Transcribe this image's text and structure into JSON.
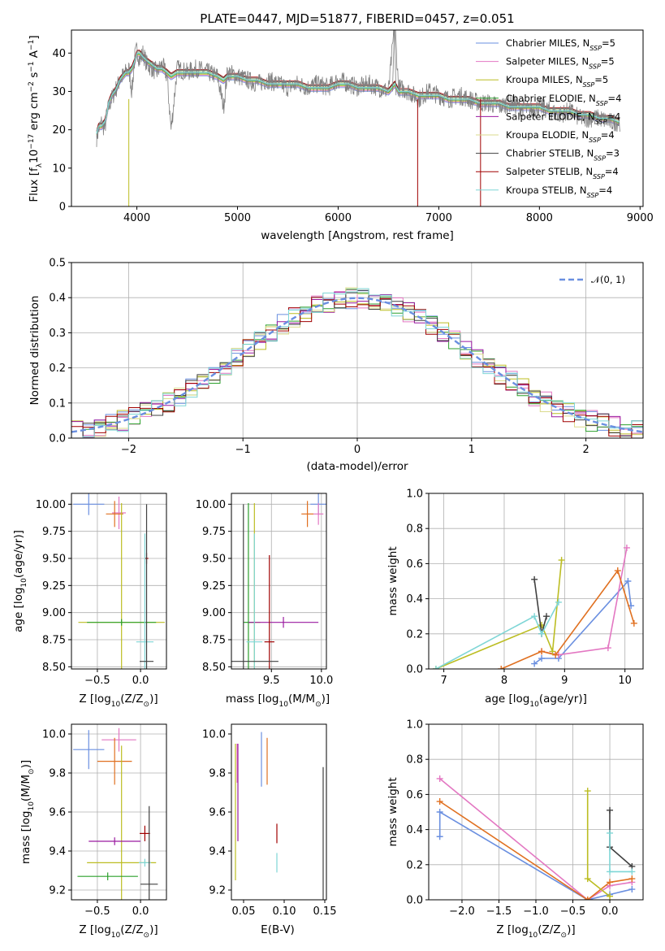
{
  "colors": {
    "chabrier_miles": "#6a8fe0",
    "salpeter_miles": "#e377c2",
    "kroupa_miles": "#bcbd22",
    "chabrier_elodie": "#2ca02c",
    "salpeter_elodie": "#9a1aa0",
    "kroupa_elodie": "#dbdb8d",
    "chabrier_stelib": "#404040",
    "salpeter_stelib": "#a00000",
    "kroupa_stelib": "#7fd6d6",
    "data_grey": "#808080",
    "fit_cyan": "#7fd6d6",
    "gauss": "#6a8fe0"
  },
  "chart_data": [
    {
      "id": "spectrum",
      "type": "line",
      "title": "PLATE=0447, MJD=51877, FIBERID=0457, z=0.051",
      "xlabel": "wavelength [Angstrom, rest frame]",
      "ylabel": "Flux [f$_\\lambda$10$^{-17}$ erg cm$^{-2}$ s$^{-1}$ A$^{-1}$]",
      "ylabel_parts": [
        "Flux [f",
        "λ",
        "10",
        "−17",
        " erg cm",
        "−2",
        " s",
        "−1",
        " A",
        "−1",
        "]"
      ],
      "xlim": [
        3350,
        9030
      ],
      "ylim": [
        0,
        46
      ],
      "xticks": [
        "4000",
        "5000",
        "6000",
        "7000",
        "8000",
        "9000"
      ],
      "yticks": [
        "0",
        "10",
        "20",
        "30",
        "40"
      ],
      "x": [
        3600,
        3620,
        3650,
        3680,
        3700,
        3720,
        3750,
        3780,
        3800,
        3830,
        3860,
        3890,
        3920,
        3950,
        3980,
        4000,
        4030,
        4060,
        4100,
        4150,
        4200,
        4250,
        4300,
        4340,
        4400,
        4500,
        4600,
        4700,
        4800,
        4861,
        4900,
        5000,
        5100,
        5200,
        5300,
        5400,
        5500,
        5600,
        5700,
        5800,
        5900,
        6000,
        6100,
        6200,
        6300,
        6400,
        6500,
        6563,
        6600,
        6700,
        6800,
        6900,
        7000,
        7100,
        7200,
        7300,
        7400,
        7500,
        7600,
        7700,
        7800,
        7900,
        8000,
        8100,
        8200,
        8300,
        8400,
        8500,
        8600,
        8700,
        8800
      ],
      "series": [
        {
          "name": "data",
          "values": [
            18,
            20,
            22,
            20,
            24,
            26,
            28,
            30,
            31,
            33,
            34,
            35,
            36,
            30,
            39,
            41,
            38,
            40,
            37,
            36,
            35,
            37,
            34,
            20,
            36,
            35,
            36,
            35,
            34,
            26,
            35,
            34,
            33,
            32,
            33,
            32,
            31,
            32,
            31,
            32,
            31,
            33,
            32,
            31,
            32,
            31,
            30,
            48,
            31,
            30,
            28,
            30,
            29,
            28,
            29,
            28,
            27,
            27,
            26,
            27,
            26,
            25,
            26,
            25,
            24,
            25,
            23,
            23,
            23,
            22,
            22
          ]
        },
        {
          "name": "model",
          "values": [
            19,
            21,
            21,
            22,
            24,
            27,
            29,
            30,
            31,
            33,
            34,
            35,
            35,
            36,
            38,
            40,
            40,
            39,
            38,
            37,
            36,
            36,
            35,
            34,
            35,
            35,
            35,
            35,
            34,
            33,
            34,
            34,
            33,
            33,
            32,
            32,
            32,
            32,
            31,
            31,
            31,
            32,
            32,
            31,
            31,
            31,
            30,
            32,
            30,
            30,
            29,
            29,
            29,
            28,
            28,
            28,
            27,
            27,
            27,
            26,
            26,
            26,
            26,
            25,
            25,
            25,
            24,
            24,
            23,
            23,
            22
          ]
        }
      ],
      "legend": [
        {
          "label": "Chabrier MILES, N",
          "sub": "SSP",
          "value": "=5",
          "color": "#6a8fe0"
        },
        {
          "label": "Salpeter MILES, N",
          "sub": "SSP",
          "value": "=5",
          "color": "#e377c2"
        },
        {
          "label": "Kroupa MILES, N",
          "sub": "SSP",
          "value": "=5",
          "color": "#bcbd22"
        },
        {
          "label": "Chabrier ELODIE, N",
          "sub": "SSP",
          "value": "=4",
          "color": "#2ca02c"
        },
        {
          "label": "Salpeter ELODIE, N",
          "sub": "SSP",
          "value": "=4",
          "color": "#9a1aa0"
        },
        {
          "label": "Kroupa ELODIE, N",
          "sub": "SSP",
          "value": "=4",
          "color": "#dbdb8d"
        },
        {
          "label": "Chabrier STELIB, N",
          "sub": "SSP",
          "value": "=3",
          "color": "#404040"
        },
        {
          "label": "Salpeter STELIB, N",
          "sub": "SSP",
          "value": "=4",
          "color": "#a00000"
        },
        {
          "label": "Kroupa STELIB, N",
          "sub": "SSP",
          "value": "=4",
          "color": "#7fd6d6"
        }
      ],
      "legend_placement": "upper right"
    },
    {
      "id": "residuals",
      "type": "line",
      "xlabel": "(data-model)/error",
      "ylabel": "Normed distribution",
      "xlim": [
        -2.5,
        2.5
      ],
      "ylim": [
        0,
        0.5
      ],
      "xticks": [
        "−2",
        "−1",
        "0",
        "1",
        "2"
      ],
      "yticks": [
        "0.0",
        "0.1",
        "0.2",
        "0.3",
        "0.4",
        "0.5"
      ],
      "grid": true,
      "bin_width": 0.1,
      "legend": [
        {
          "label": "𝒩(0, 1)",
          "color": "#6a8fe0",
          "style": "dashed"
        }
      ],
      "legend_placement": "upper right"
    },
    {
      "id": "age_vs_Z",
      "type": "scatter",
      "xlabel": "Z [log",
      "xlabel_parts": [
        "Z [log",
        "10",
        "(Z/Z",
        "⊙",
        ")]"
      ],
      "ylabel_parts": [
        "age  [log",
        "10",
        "(age/yr)]"
      ],
      "xlim": [
        -0.8,
        0.3
      ],
      "ylim": [
        8.48,
        10.1
      ],
      "xticks": [
        "−0.5",
        "0.0"
      ],
      "yticks": [
        "8.50",
        "8.75",
        "9.00",
        "9.25",
        "9.50",
        "9.75",
        "10.00"
      ],
      "grid": true,
      "points": [
        {
          "x": -0.6,
          "y": 10.0,
          "xerr": 0.18,
          "yerr": 0.1,
          "color": "#6a8fe0"
        },
        {
          "x": -0.25,
          "y": 9.92,
          "xerr": 0.08,
          "yerr": 0.15,
          "color": "#e377c2"
        },
        {
          "x": -0.3,
          "y": 9.91,
          "xerr": 0.1,
          "yerr": 0.12,
          "color": "#e07020"
        },
        {
          "x": -0.22,
          "y": 8.91,
          "xerr": 0.5,
          "yerr": 1.1,
          "color": "#bcbd22"
        },
        {
          "x": -0.22,
          "y": 8.91,
          "xerr": 0.4,
          "yerr": 0.03,
          "color": "#2ca02c"
        },
        {
          "x": 0.07,
          "y": 9.5,
          "xerr": 0.02,
          "yerr": 0.05,
          "color": "#a00000"
        },
        {
          "x": 0.05,
          "y": 8.73,
          "xerr": 0.1,
          "yerr": 1.0,
          "color": "#7fd6d6"
        },
        {
          "x": 0.07,
          "y": 8.55,
          "xerr": 0.08,
          "yerr": 1.45,
          "color": "#404040"
        }
      ]
    },
    {
      "id": "age_vs_mass",
      "type": "scatter",
      "xlabel_parts": [
        "mass [log",
        "10",
        "(M/M",
        "⊙",
        ")]"
      ],
      "xlim": [
        9.1,
        10.05
      ],
      "ylim": [
        8.48,
        10.1
      ],
      "xticks": [
        "9.5",
        "10.0"
      ],
      "yticks": [
        "8.50",
        "8.75",
        "9.00",
        "9.25",
        "9.50",
        "9.75",
        "10.00"
      ],
      "grid": true,
      "points": [
        {
          "x": 9.97,
          "y": 10.0,
          "xerr": 0.08,
          "yerr": 0.1,
          "color": "#6a8fe0"
        },
        {
          "x": 9.97,
          "y": 9.91,
          "xerr": 0.05,
          "yerr": 0.1,
          "color": "#e377c2"
        },
        {
          "x": 9.86,
          "y": 9.91,
          "xerr": 0.06,
          "yerr": 0.12,
          "color": "#e07020"
        },
        {
          "x": 9.33,
          "y": 8.91,
          "xerr": 0.06,
          "yerr": 1.1,
          "color": "#bcbd22"
        },
        {
          "x": 9.27,
          "y": 8.91,
          "xerr": 0.05,
          "yerr": 1.1,
          "color": "#2ca02c"
        },
        {
          "x": 9.62,
          "y": 8.91,
          "xerr": 0.35,
          "yerr": 0.05,
          "color": "#9a1aa0"
        },
        {
          "x": 9.48,
          "y": 8.73,
          "xerr": 0.05,
          "yerr": 0.8,
          "color": "#a00000"
        },
        {
          "x": 9.33,
          "y": 8.73,
          "xerr": 0.08,
          "yerr": 1.0,
          "color": "#7fd6d6"
        },
        {
          "x": 9.22,
          "y": 8.55,
          "xerr": 0.35,
          "yerr": 1.45,
          "color": "#404040"
        }
      ]
    },
    {
      "id": "mass_weight_vs_age",
      "type": "line",
      "xlabel_parts": [
        "age  [log",
        "10",
        "(age/yr)]"
      ],
      "ylabel": "mass weight",
      "xlim": [
        6.75,
        10.3
      ],
      "ylim": [
        0,
        1.0
      ],
      "xticks": [
        "7",
        "8",
        "9",
        "10"
      ],
      "yticks": [
        "0.0",
        "0.2",
        "0.4",
        "0.6",
        "0.8",
        "1.0"
      ],
      "grid": true,
      "series": [
        {
          "name": "chabrier_miles",
          "color": "#6a8fe0",
          "x": [
            8.5,
            8.62,
            8.9,
            10.05,
            10.1
          ],
          "y": [
            0.03,
            0.06,
            0.06,
            0.5,
            0.36
          ]
        },
        {
          "name": "salpeter_miles",
          "color": "#e377c2",
          "x": [
            8.62,
            8.9,
            9.72,
            10.03
          ],
          "y": [
            0.1,
            0.08,
            0.12,
            0.69
          ]
        },
        {
          "name": "kroupa_miles",
          "color": "#e07020",
          "x": [
            7.95,
            8.62,
            8.85,
            9.88,
            10.15
          ],
          "y": [
            0.0,
            0.1,
            0.08,
            0.56,
            0.26
          ]
        },
        {
          "name": "kroupa_elodie",
          "color": "#bcbd22",
          "x": [
            6.87,
            8.62,
            8.8,
            8.95
          ],
          "y": [
            0.0,
            0.25,
            0.1,
            0.62
          ]
        },
        {
          "name": "chabrier_stelib",
          "color": "#404040",
          "x": [
            8.5,
            8.62,
            8.7
          ],
          "y": [
            0.51,
            0.2,
            0.3
          ]
        },
        {
          "name": "kroupa_stelib",
          "color": "#7fd6d6",
          "x": [
            6.87,
            8.5,
            8.62,
            8.9
          ],
          "y": [
            0.0,
            0.3,
            0.2,
            0.38
          ]
        }
      ]
    },
    {
      "id": "mass_vs_Z",
      "type": "scatter",
      "xlabel_parts": [
        "Z [log",
        "10",
        "(Z/Z",
        "⊙",
        ")]"
      ],
      "ylabel_parts": [
        "mass [log",
        "10",
        "(M/M",
        "⊙",
        ")]"
      ],
      "xlim": [
        -0.8,
        0.3
      ],
      "ylim": [
        9.15,
        10.05
      ],
      "xticks": [
        "−0.5",
        "0.0"
      ],
      "yticks": [
        "9.2",
        "9.4",
        "9.6",
        "9.8",
        "10.0"
      ],
      "grid": true,
      "points": [
        {
          "x": -0.6,
          "y": 9.92,
          "xerr": 0.18,
          "yerr": 0.1,
          "color": "#6a8fe0"
        },
        {
          "x": -0.25,
          "y": 9.97,
          "xerr": 0.2,
          "yerr": 0.06,
          "color": "#e377c2"
        },
        {
          "x": -0.3,
          "y": 9.86,
          "xerr": 0.2,
          "yerr": 0.12,
          "color": "#e07020"
        },
        {
          "x": -0.22,
          "y": 9.34,
          "xerr": 0.4,
          "yerr": 0.6,
          "color": "#bcbd22"
        },
        {
          "x": -0.3,
          "y": 9.45,
          "xerr": 0.3,
          "yerr": 0.02,
          "color": "#9a1aa0"
        },
        {
          "x": -0.38,
          "y": 9.27,
          "xerr": 0.35,
          "yerr": 0.02,
          "color": "#2ca02c"
        },
        {
          "x": 0.05,
          "y": 9.49,
          "xerr": 0.06,
          "yerr": 0.04,
          "color": "#a00000"
        },
        {
          "x": 0.05,
          "y": 9.34,
          "xerr": 0.07,
          "yerr": 0.02,
          "color": "#7fd6d6"
        },
        {
          "x": 0.1,
          "y": 9.23,
          "xerr": 0.1,
          "yerr": 0.4,
          "color": "#404040"
        }
      ]
    },
    {
      "id": "mass_vs_ebv",
      "type": "scatter",
      "xlabel": "E(B-V)",
      "xlim": [
        0.035,
        0.152
      ],
      "ylim": [
        9.15,
        10.05
      ],
      "xticks": [
        "0.05",
        "0.10",
        "0.15"
      ],
      "yticks": [
        "9.2",
        "9.4",
        "9.6",
        "9.8",
        "10.0"
      ],
      "points": [
        {
          "x": 0.04,
          "y": 9.6,
          "yerr": 0.35,
          "color": "#bcbd22"
        },
        {
          "x": 0.042,
          "y": 9.85,
          "yerr": 0.1,
          "color": "#e377c2"
        },
        {
          "x": 0.043,
          "y": 9.7,
          "yerr": 0.25,
          "color": "#9a1aa0"
        },
        {
          "x": 0.072,
          "y": 9.87,
          "yerr": 0.14,
          "color": "#6a8fe0"
        },
        {
          "x": 0.079,
          "y": 9.86,
          "yerr": 0.12,
          "color": "#e07020"
        },
        {
          "x": 0.091,
          "y": 9.49,
          "yerr": 0.05,
          "color": "#a00000"
        },
        {
          "x": 0.091,
          "y": 9.34,
          "yerr": 0.05,
          "color": "#7fd6d6"
        },
        {
          "x": 0.148,
          "y": 9.43,
          "yerr": 0.4,
          "color": "#404040"
        }
      ]
    },
    {
      "id": "mass_weight_vs_Z",
      "type": "line",
      "xlabel_parts": [
        "Z [log",
        "10",
        "(Z/Z",
        "⊙",
        ")]"
      ],
      "ylabel": "mass weight",
      "xlim": [
        -2.45,
        0.45
      ],
      "ylim": [
        0,
        1.0
      ],
      "xticks": [
        "−2.0",
        "−1.5",
        "−1.0",
        "−0.5",
        "0.0"
      ],
      "yticks": [
        "0.0",
        "0.2",
        "0.4",
        "0.6",
        "0.8",
        "1.0"
      ],
      "grid": true,
      "series": [
        {
          "name": "chabrier_miles",
          "color": "#6a8fe0",
          "x": [
            -2.3,
            -2.3,
            -0.3,
            0.0,
            0.3
          ],
          "y": [
            0.36,
            0.5,
            0.0,
            0.03,
            0.06
          ]
        },
        {
          "name": "salpeter_miles",
          "color": "#e377c2",
          "x": [
            -2.3,
            -0.3,
            0.0,
            0.3
          ],
          "y": [
            0.69,
            0.0,
            0.08,
            0.1
          ]
        },
        {
          "name": "kroupa_miles",
          "color": "#e07020",
          "x": [
            -2.3,
            -0.3,
            0.0,
            0.3
          ],
          "y": [
            0.56,
            0.0,
            0.1,
            0.12
          ]
        },
        {
          "name": "kroupa_elodie",
          "color": "#bcbd22",
          "x": [
            -0.3,
            -0.3,
            0.0
          ],
          "y": [
            0.62,
            0.12,
            0.02
          ]
        },
        {
          "name": "chabrier_stelib",
          "color": "#404040",
          "x": [
            0.0,
            0.0,
            0.3
          ],
          "y": [
            0.51,
            0.3,
            0.19
          ]
        },
        {
          "name": "kroupa_stelib",
          "color": "#7fd6d6",
          "x": [
            0.0,
            0.0,
            0.3
          ],
          "y": [
            0.38,
            0.16,
            0.16
          ]
        }
      ]
    }
  ]
}
